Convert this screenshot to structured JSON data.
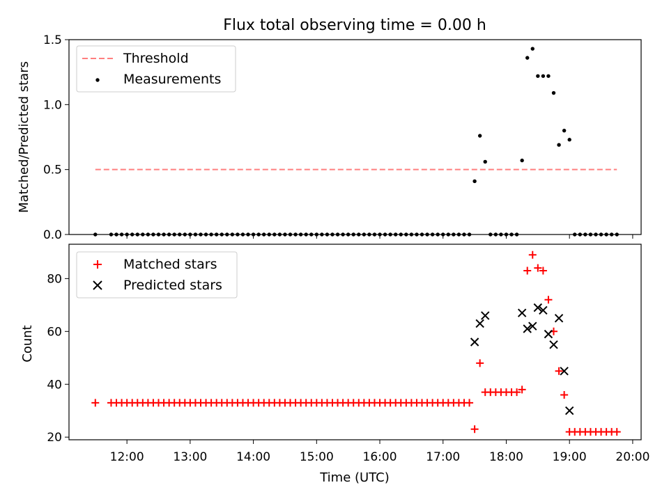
{
  "chart_data": [
    {
      "type": "scatter",
      "title": "Flux total observing time = 0.00 h",
      "xlabel": "",
      "ylabel": "Matched/Predicted stars",
      "ylim": [
        0,
        1.5
      ],
      "yticks": [
        "0.0",
        "0.5",
        "1.0",
        "1.5"
      ],
      "xlim": [
        "11:05",
        "20:08"
      ],
      "grid": false,
      "legend": "top-left",
      "threshold": {
        "name": "Threshold",
        "value": 0.5,
        "x_start": "11:30",
        "x_end": "19:45",
        "color": "#ff7f7f"
      },
      "series": [
        {
          "name": "Measurements",
          "color": "#000000",
          "x": [
            "11:30",
            "11:45",
            "11:50",
            "11:55",
            "12:00",
            "12:05",
            "12:10",
            "12:15",
            "12:20",
            "12:25",
            "12:30",
            "12:35",
            "12:40",
            "12:45",
            "12:50",
            "12:55",
            "13:00",
            "13:05",
            "13:10",
            "13:15",
            "13:20",
            "13:25",
            "13:30",
            "13:35",
            "13:40",
            "13:45",
            "13:50",
            "13:55",
            "14:00",
            "14:05",
            "14:10",
            "14:15",
            "14:20",
            "14:25",
            "14:30",
            "14:35",
            "14:40",
            "14:45",
            "14:50",
            "14:55",
            "15:00",
            "15:05",
            "15:10",
            "15:15",
            "15:20",
            "15:25",
            "15:30",
            "15:35",
            "15:40",
            "15:45",
            "15:50",
            "15:55",
            "16:00",
            "16:05",
            "16:10",
            "16:15",
            "16:20",
            "16:25",
            "16:30",
            "16:35",
            "16:40",
            "16:45",
            "16:50",
            "16:55",
            "17:00",
            "17:05",
            "17:10",
            "17:15",
            "17:20",
            "17:25",
            "17:30",
            "17:35",
            "17:40",
            "17:45",
            "17:50",
            "17:55",
            "18:00",
            "18:05",
            "18:10",
            "18:15",
            "18:20",
            "18:25",
            "18:30",
            "18:35",
            "18:40",
            "18:45",
            "18:50",
            "18:55",
            "19:00",
            "19:05",
            "19:10",
            "19:15",
            "19:20",
            "19:25",
            "19:30",
            "19:35",
            "19:40",
            "19:45"
          ],
          "y": [
            0,
            0,
            0,
            0,
            0,
            0,
            0,
            0,
            0,
            0,
            0,
            0,
            0,
            0,
            0,
            0,
            0,
            0,
            0,
            0,
            0,
            0,
            0,
            0,
            0,
            0,
            0,
            0,
            0,
            0,
            0,
            0,
            0,
            0,
            0,
            0,
            0,
            0,
            0,
            0,
            0,
            0,
            0,
            0,
            0,
            0,
            0,
            0,
            0,
            0,
            0,
            0,
            0,
            0,
            0,
            0,
            0,
            0,
            0,
            0,
            0,
            0,
            0,
            0,
            0,
            0,
            0,
            0,
            0,
            0,
            0.41,
            0.76,
            0.56,
            0,
            0,
            0,
            0,
            0,
            0,
            0.57,
            1.36,
            1.43,
            1.22,
            1.22,
            1.22,
            1.09,
            0.69,
            0.8,
            0.73,
            0,
            0,
            0,
            0,
            0,
            0,
            0,
            0,
            0
          ]
        }
      ]
    },
    {
      "type": "scatter",
      "title": "",
      "xlabel": "Time (UTC)",
      "ylabel": "Count",
      "ylim": [
        19,
        93
      ],
      "yticks": [
        "20",
        "40",
        "60",
        "80"
      ],
      "xlim": [
        "11:05",
        "20:08"
      ],
      "xticks": [
        "12:00",
        "13:00",
        "14:00",
        "15:00",
        "16:00",
        "17:00",
        "18:00",
        "19:00",
        "20:00"
      ],
      "grid": false,
      "legend": "top-left",
      "series": [
        {
          "name": "Matched stars",
          "marker": "plus",
          "color": "#ff0000",
          "x": [
            "11:30",
            "11:45",
            "11:50",
            "11:55",
            "12:00",
            "12:05",
            "12:10",
            "12:15",
            "12:20",
            "12:25",
            "12:30",
            "12:35",
            "12:40",
            "12:45",
            "12:50",
            "12:55",
            "13:00",
            "13:05",
            "13:10",
            "13:15",
            "13:20",
            "13:25",
            "13:30",
            "13:35",
            "13:40",
            "13:45",
            "13:50",
            "13:55",
            "14:00",
            "14:05",
            "14:10",
            "14:15",
            "14:20",
            "14:25",
            "14:30",
            "14:35",
            "14:40",
            "14:45",
            "14:50",
            "14:55",
            "15:00",
            "15:05",
            "15:10",
            "15:15",
            "15:20",
            "15:25",
            "15:30",
            "15:35",
            "15:40",
            "15:45",
            "15:50",
            "15:55",
            "16:00",
            "16:05",
            "16:10",
            "16:15",
            "16:20",
            "16:25",
            "16:30",
            "16:35",
            "16:40",
            "16:45",
            "16:50",
            "16:55",
            "17:00",
            "17:05",
            "17:10",
            "17:15",
            "17:20",
            "17:25",
            "17:30",
            "17:35",
            "17:40",
            "17:45",
            "17:50",
            "17:55",
            "18:00",
            "18:05",
            "18:10",
            "18:15",
            "18:20",
            "18:25",
            "18:30",
            "18:35",
            "18:40",
            "18:45",
            "18:50",
            "18:55",
            "19:00",
            "19:05",
            "19:10",
            "19:15",
            "19:20",
            "19:25",
            "19:30",
            "19:35",
            "19:40",
            "19:45"
          ],
          "y": [
            33,
            33,
            33,
            33,
            33,
            33,
            33,
            33,
            33,
            33,
            33,
            33,
            33,
            33,
            33,
            33,
            33,
            33,
            33,
            33,
            33,
            33,
            33,
            33,
            33,
            33,
            33,
            33,
            33,
            33,
            33,
            33,
            33,
            33,
            33,
            33,
            33,
            33,
            33,
            33,
            33,
            33,
            33,
            33,
            33,
            33,
            33,
            33,
            33,
            33,
            33,
            33,
            33,
            33,
            33,
            33,
            33,
            33,
            33,
            33,
            33,
            33,
            33,
            33,
            33,
            33,
            33,
            33,
            33,
            33,
            23,
            48,
            37,
            37,
            37,
            37,
            37,
            37,
            37,
            38,
            83,
            89,
            84,
            83,
            72,
            60,
            45,
            36,
            22,
            22,
            22,
            22,
            22,
            22,
            22,
            22,
            22,
            22
          ]
        },
        {
          "name": "Predicted stars",
          "marker": "x",
          "color": "#000000",
          "x": [
            "17:30",
            "17:35",
            "17:40",
            "18:15",
            "18:20",
            "18:25",
            "18:30",
            "18:35",
            "18:40",
            "18:45",
            "18:50",
            "18:55",
            "19:00"
          ],
          "y": [
            56,
            63,
            66,
            67,
            61,
            62,
            69,
            68,
            59,
            55,
            65,
            45,
            30
          ]
        }
      ]
    }
  ]
}
